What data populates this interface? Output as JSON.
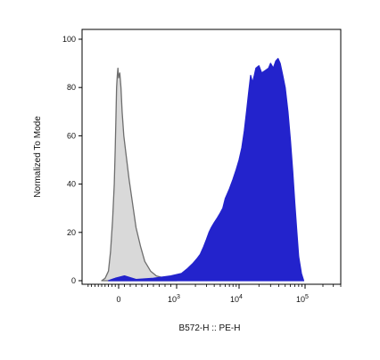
{
  "chart_data": {
    "type": "area",
    "xlabel": "B572-H :: PE-H",
    "ylabel": "Normalized To Mode",
    "ylim": [
      0,
      100
    ],
    "x_scale": "biexponential",
    "y_ticks": [
      "0",
      "20",
      "40",
      "60",
      "80",
      "100"
    ],
    "x_ticks": [
      {
        "value": 0,
        "base": "0",
        "exp": ""
      },
      {
        "value": 1000,
        "base": "10",
        "exp": "3"
      },
      {
        "value": 10000,
        "base": "10",
        "exp": "4"
      },
      {
        "value": 100000,
        "base": "10",
        "exp": "5"
      }
    ],
    "grid": false,
    "series": [
      {
        "color": "#d9d9d9",
        "stroke": "#6e6e6e",
        "points": [
          [
            -500,
            0
          ],
          [
            -400,
            1
          ],
          [
            -300,
            4
          ],
          [
            -240,
            12
          ],
          [
            -180,
            25
          ],
          [
            -130,
            40
          ],
          [
            -100,
            55
          ],
          [
            -80,
            68
          ],
          [
            -60,
            80
          ],
          [
            -40,
            85
          ],
          [
            -20,
            88
          ],
          [
            0,
            84
          ],
          [
            20,
            86
          ],
          [
            40,
            80
          ],
          [
            60,
            70
          ],
          [
            90,
            60
          ],
          [
            130,
            52
          ],
          [
            180,
            42
          ],
          [
            240,
            32
          ],
          [
            300,
            22
          ],
          [
            380,
            14
          ],
          [
            450,
            8
          ],
          [
            550,
            4
          ],
          [
            650,
            2
          ],
          [
            800,
            1
          ],
          [
            1000,
            0
          ]
        ]
      },
      {
        "color": "#2323cc",
        "stroke": "#2323cc",
        "points": [
          [
            -300,
            0
          ],
          [
            -100,
            1
          ],
          [
            100,
            2
          ],
          [
            300,
            0.5
          ],
          [
            600,
            1
          ],
          [
            900,
            2
          ],
          [
            1200,
            3
          ],
          [
            1500,
            5
          ],
          [
            1800,
            7
          ],
          [
            2100,
            9
          ],
          [
            2400,
            11
          ],
          [
            2700,
            14
          ],
          [
            3000,
            17
          ],
          [
            3300,
            20
          ],
          [
            3600,
            22
          ],
          [
            4000,
            24
          ],
          [
            4500,
            26
          ],
          [
            5000,
            28
          ],
          [
            5500,
            30
          ],
          [
            6000,
            34
          ],
          [
            7000,
            38
          ],
          [
            8000,
            42
          ],
          [
            9000,
            46
          ],
          [
            10000,
            50
          ],
          [
            11000,
            55
          ],
          [
            12000,
            62
          ],
          [
            13000,
            70
          ],
          [
            14000,
            78
          ],
          [
            15000,
            85
          ],
          [
            16000,
            82
          ],
          [
            17000,
            85
          ],
          [
            18000,
            88
          ],
          [
            20000,
            89
          ],
          [
            22000,
            86
          ],
          [
            25000,
            87
          ],
          [
            28000,
            88
          ],
          [
            30000,
            90
          ],
          [
            33000,
            88
          ],
          [
            36000,
            91
          ],
          [
            39000,
            92
          ],
          [
            42000,
            90
          ],
          [
            46000,
            85
          ],
          [
            50000,
            80
          ],
          [
            55000,
            70
          ],
          [
            60000,
            58
          ],
          [
            65000,
            45
          ],
          [
            70000,
            32
          ],
          [
            75000,
            20
          ],
          [
            80000,
            10
          ],
          [
            88000,
            3
          ],
          [
            95000,
            0
          ]
        ]
      }
    ]
  }
}
